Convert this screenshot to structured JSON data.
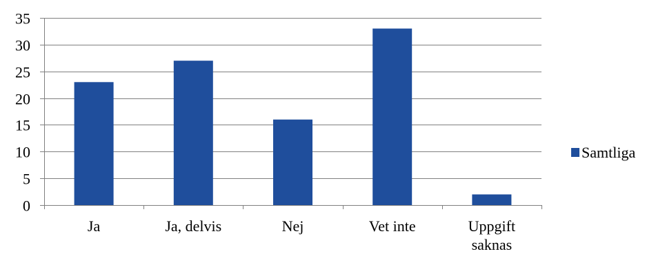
{
  "chart_data": {
    "type": "bar",
    "categories": [
      "Ja",
      "Ja, delvis",
      "Nej",
      "Vet inte",
      "Uppgift saknas"
    ],
    "category_label_lines": [
      [
        "Ja"
      ],
      [
        "Ja, delvis"
      ],
      [
        "Nej"
      ],
      [
        "Vet inte"
      ],
      [
        "Uppgift",
        "saknas"
      ]
    ],
    "series": [
      {
        "name": "Samtliga",
        "values": [
          23,
          27,
          16,
          33,
          2
        ],
        "color": "#1f4e9c"
      }
    ],
    "ylim": [
      0,
      35
    ],
    "yticks": [
      0,
      5,
      10,
      15,
      20,
      25,
      30,
      35
    ],
    "grid": true,
    "legend_position": "right"
  }
}
